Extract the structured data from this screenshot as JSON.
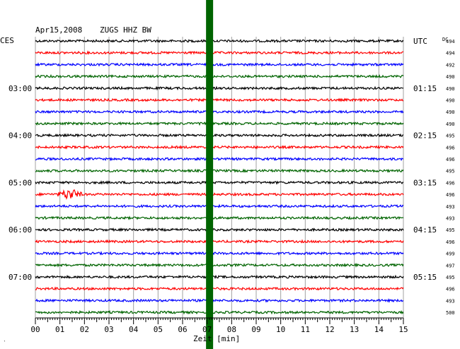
{
  "header": {
    "date": "Apr15,2008",
    "station": "ZUGS HHZ BW",
    "left_timezone": "CES",
    "right_timezone": "UTC",
    "dc_label": "DC"
  },
  "footer": {
    "xlabel": "Zeit [min]",
    "corner_mark": "‵"
  },
  "colors": {
    "black": "#000000",
    "red": "#ff0000",
    "blue": "#0000ff",
    "green": "#006400",
    "grid": "#a0a0a0",
    "marker": "#006400"
  },
  "chart_data": {
    "type": "line",
    "title": "Apr15,2008  ZUGS HHZ BW",
    "xlabel": "Zeit [min]",
    "x_ticks": [
      "00",
      "01",
      "02",
      "03",
      "04",
      "05",
      "06",
      "07",
      "08",
      "09",
      "10",
      "11",
      "12",
      "13",
      "14",
      "15"
    ],
    "xlim": [
      0,
      15
    ],
    "trace_count": 24,
    "trace_color_cycle": [
      "black",
      "red",
      "blue",
      "green"
    ],
    "left_hour_labels": [
      {
        "trace": 4,
        "label": "03:00"
      },
      {
        "trace": 8,
        "label": "04:00"
      },
      {
        "trace": 12,
        "label": "05:00"
      },
      {
        "trace": 16,
        "label": "06:00"
      },
      {
        "trace": 20,
        "label": "07:00"
      }
    ],
    "right_hour_labels": [
      {
        "trace": 0,
        "label": "UTC"
      },
      {
        "trace": 4,
        "label": "01:15"
      },
      {
        "trace": 8,
        "label": "02:15"
      },
      {
        "trace": 12,
        "label": "03:15"
      },
      {
        "trace": 16,
        "label": "04:15"
      },
      {
        "trace": 20,
        "label": "05:15"
      }
    ],
    "dc_values": [
      "494",
      "494",
      "492",
      "490",
      "490",
      "490",
      "490",
      "490",
      "495",
      "496",
      "496",
      "495",
      "496",
      "496",
      "493",
      "493",
      "495",
      "496",
      "499",
      "497",
      "495",
      "496",
      "493",
      "500"
    ],
    "marker_minute": 7.1,
    "events": [
      {
        "trace": 13,
        "start_min": 0.8,
        "end_min": 2.2,
        "peak_min": 1.4,
        "amplitude": 9
      },
      {
        "trace": 0,
        "start_min": 3.9,
        "end_min": 4.2,
        "peak_min": 4.0,
        "amplitude": 4
      }
    ]
  }
}
